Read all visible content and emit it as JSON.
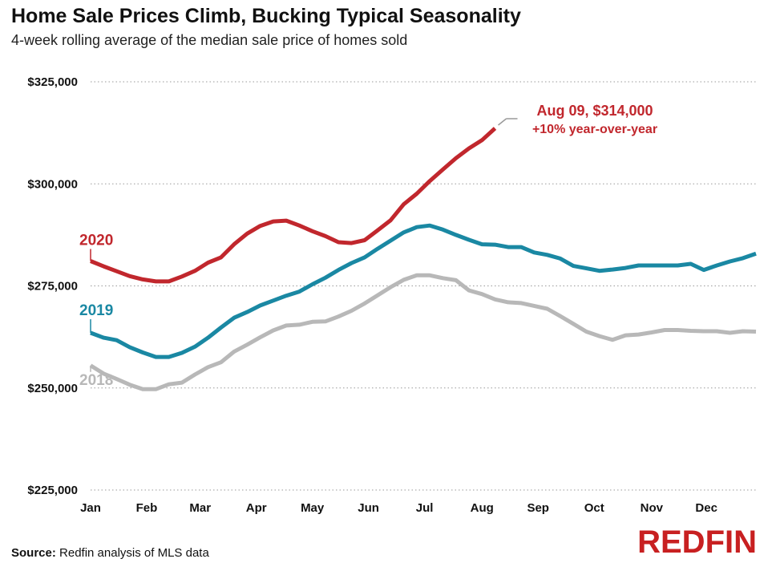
{
  "title": "Home Sale Prices Climb, Bucking Typical Seasonality",
  "subtitle": "4-week rolling average of the median sale price of homes sold",
  "source_label": "Source:",
  "source_text": "Redfin analysis of MLS data",
  "logo_text": "REDFIN",
  "colors": {
    "2020": "#c1272d",
    "2019": "#1a88a3",
    "2018": "#b8b8b8",
    "grid": "#9a9a9a"
  },
  "chart_data": {
    "type": "line",
    "title": "Home Sale Prices Climb, Bucking Typical Seasonality",
    "subtitle": "4-week rolling average of the median sale price of homes sold",
    "xlabel": "",
    "ylabel": "",
    "ylim": [
      225000,
      325000
    ],
    "yticks": [
      225000,
      250000,
      275000,
      300000,
      325000
    ],
    "ytick_labels": [
      "$225,000",
      "$250,000",
      "$275,000",
      "$300,000",
      "$325,000"
    ],
    "xlim": [
      0,
      51
    ],
    "xticks": [
      0,
      4.3,
      8.4,
      12.7,
      17,
      21.3,
      25.6,
      30,
      34.3,
      38.6,
      43,
      47.2
    ],
    "xtick_labels": [
      "Jan",
      "Feb",
      "Mar",
      "Apr",
      "May",
      "Jun",
      "Jul",
      "Aug",
      "Sep",
      "Oct",
      "Nov",
      "Dec"
    ],
    "grid": "horizontal-dotted",
    "legend": "inline-labels",
    "series": [
      {
        "name": "2018",
        "x": [
          0,
          1,
          2,
          3,
          4,
          5,
          6,
          7,
          8,
          9,
          10,
          11,
          12,
          13,
          14,
          15,
          16,
          17,
          18,
          19,
          20,
          21,
          22,
          23,
          24,
          25,
          26,
          27,
          28,
          29,
          30,
          31,
          32,
          33,
          34,
          35,
          36,
          37,
          38,
          39,
          40,
          41,
          42,
          43,
          44,
          45,
          46,
          47,
          48,
          49,
          50,
          51
        ],
        "values": [
          255500,
          253500,
          252200,
          250800,
          249700,
          249700,
          250900,
          251300,
          253300,
          255100,
          256300,
          258900,
          260600,
          262400,
          264100,
          265300,
          265500,
          266200,
          266300,
          267500,
          268900,
          270700,
          272700,
          274700,
          276500,
          277600,
          277600,
          276900,
          276400,
          273900,
          273000,
          271700,
          271000,
          270800,
          270100,
          269400,
          267600,
          265700,
          263800,
          262700,
          261800,
          262900,
          263100,
          263600,
          264200,
          264200,
          264000,
          263900,
          263900,
          263500,
          263900,
          263800
        ]
      },
      {
        "name": "2019",
        "x": [
          0,
          1,
          2,
          3,
          4,
          5,
          6,
          7,
          8,
          9,
          10,
          11,
          12,
          13,
          14,
          15,
          16,
          17,
          18,
          19,
          20,
          21,
          22,
          23,
          24,
          25,
          26,
          27,
          28,
          29,
          30,
          31,
          32,
          33,
          34,
          35,
          36,
          37,
          38,
          39,
          40,
          41,
          42,
          43,
          44,
          45,
          46,
          47,
          48,
          49,
          50,
          51
        ],
        "values": [
          263500,
          262300,
          261700,
          260000,
          258700,
          257600,
          257600,
          258600,
          260100,
          262300,
          264800,
          267200,
          268600,
          270200,
          271400,
          272600,
          273600,
          275400,
          277000,
          278900,
          280600,
          282000,
          284100,
          286100,
          288100,
          289400,
          289800,
          288800,
          287500,
          286300,
          285200,
          285100,
          284500,
          284500,
          283200,
          282600,
          281700,
          279900,
          279300,
          278700,
          279000,
          279400,
          280000,
          280000,
          280000,
          280000,
          280400,
          278900,
          280000,
          281000,
          281800,
          282900
        ]
      },
      {
        "name": "2020",
        "x": [
          0,
          1,
          2,
          3,
          4,
          5,
          6,
          7,
          8,
          9,
          10,
          11,
          12,
          13,
          14,
          15,
          16,
          17,
          18,
          19,
          20,
          21,
          22,
          23,
          24,
          25,
          26,
          27,
          28,
          29,
          30,
          31
        ],
        "values": [
          281100,
          279800,
          278600,
          277400,
          276600,
          276100,
          276100,
          277300,
          278700,
          280700,
          282000,
          285200,
          287800,
          289700,
          290800,
          291000,
          289800,
          288400,
          287200,
          285700,
          285500,
          286200,
          288600,
          291100,
          295000,
          297600,
          300700,
          303500,
          306300,
          308700,
          310700,
          313600
        ]
      }
    ],
    "annotations": [
      {
        "text": "Aug 09, $314,000",
        "subtext": "+10% year-over-year",
        "series": "2020",
        "x": 31,
        "y": 314000
      }
    ]
  }
}
